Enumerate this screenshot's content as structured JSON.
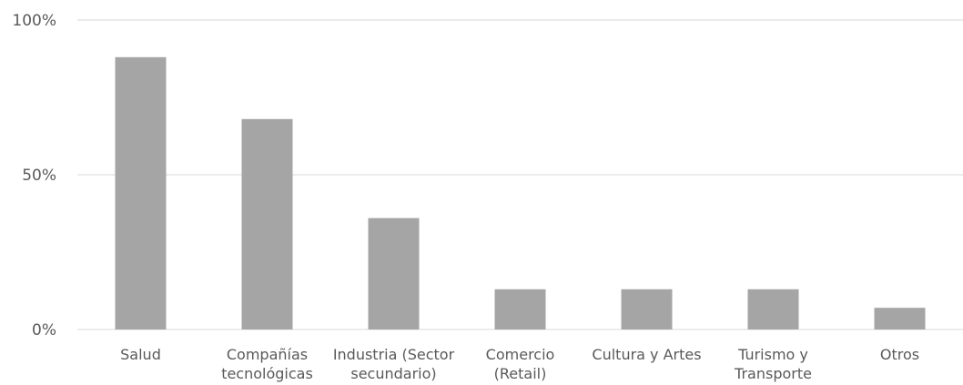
{
  "chart_data": {
    "type": "bar",
    "title": "",
    "xlabel": "",
    "ylabel": "",
    "categories": [
      [
        "Salud"
      ],
      [
        "Compañías",
        "tecnológicas"
      ],
      [
        "Industria (Sector",
        "secundario)"
      ],
      [
        "Comercio",
        "(Retail)"
      ],
      [
        "Cultura y Artes"
      ],
      [
        "Turismo y",
        "Transporte"
      ],
      [
        "Otros"
      ]
    ],
    "values": [
      88,
      68,
      36,
      13,
      13,
      13,
      7
    ],
    "ylim": [
      0,
      100
    ],
    "y_ticks": [
      {
        "value": 0,
        "label": "0%"
      },
      {
        "value": 50,
        "label": "50%"
      },
      {
        "value": 100,
        "label": "100%"
      }
    ],
    "grid": true,
    "legend": "none",
    "colors": {
      "bar": "#a5a5a5",
      "grid": "#d9d9d9",
      "text": "#595959"
    }
  }
}
